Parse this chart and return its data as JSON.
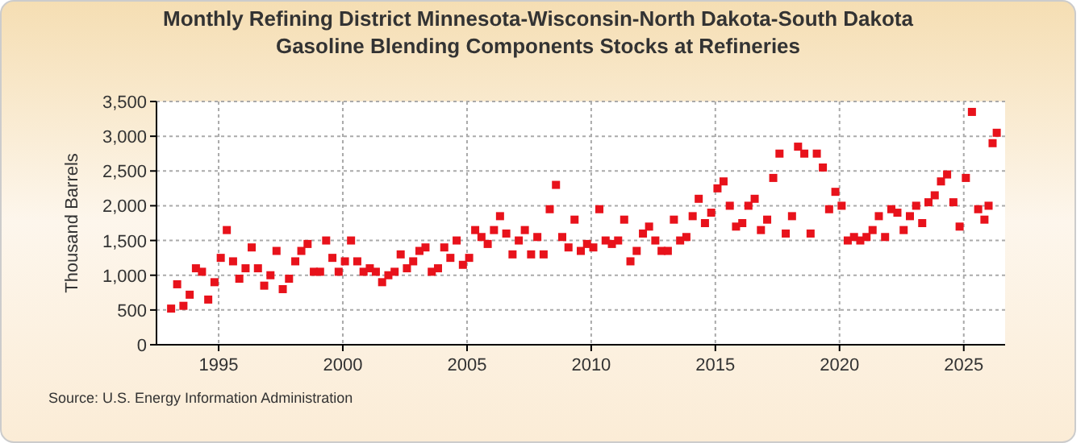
{
  "chart_data": {
    "type": "scatter",
    "title": "Monthly Refining District Minnesota-Wisconsin-North Dakota-South Dakota Gasoline Blending Components Stocks at Refineries",
    "ylabel": "Thousand Barrels",
    "annotations": [
      "Source: U.S. Energy Information Administration"
    ],
    "x": [
      "1993-02",
      "1993-05",
      "1993-08",
      "1993-11",
      "1994-02",
      "1994-05",
      "1994-08",
      "1994-11",
      "1995-02",
      "1995-05",
      "1995-08",
      "1995-11",
      "1996-02",
      "1996-05",
      "1996-08",
      "1996-11",
      "1997-02",
      "1997-05",
      "1997-08",
      "1997-11",
      "1998-02",
      "1998-05",
      "1998-08",
      "1998-11",
      "1999-02",
      "1999-05",
      "1999-08",
      "1999-11",
      "2000-02",
      "2000-05",
      "2000-08",
      "2000-11",
      "2001-02",
      "2001-05",
      "2001-08",
      "2001-11",
      "2002-02",
      "2002-05",
      "2002-08",
      "2002-11",
      "2003-02",
      "2003-05",
      "2003-08",
      "2003-11",
      "2004-02",
      "2004-05",
      "2004-08",
      "2004-11",
      "2005-02",
      "2005-05",
      "2005-08",
      "2005-11",
      "2006-02",
      "2006-05",
      "2006-08",
      "2006-11",
      "2007-02",
      "2007-05",
      "2007-08",
      "2007-11",
      "2008-02",
      "2008-05",
      "2008-08",
      "2008-11",
      "2009-02",
      "2009-05",
      "2009-08",
      "2009-11",
      "2010-02",
      "2010-05",
      "2010-08",
      "2010-11",
      "2011-02",
      "2011-05",
      "2011-08",
      "2011-11",
      "2012-02",
      "2012-05",
      "2012-08",
      "2012-11",
      "2013-02",
      "2013-05",
      "2013-08",
      "2013-11",
      "2014-02",
      "2014-05",
      "2014-08",
      "2014-11",
      "2015-02",
      "2015-05",
      "2015-08",
      "2015-11",
      "2016-02",
      "2016-05",
      "2016-08",
      "2016-11",
      "2017-02",
      "2017-05",
      "2017-08",
      "2017-11",
      "2018-02",
      "2018-05",
      "2018-08",
      "2018-11",
      "2019-02",
      "2019-05",
      "2019-08",
      "2019-11",
      "2020-02",
      "2020-05",
      "2020-08",
      "2020-11",
      "2021-02",
      "2021-05",
      "2021-08",
      "2021-11",
      "2022-02",
      "2022-05",
      "2022-08",
      "2022-11",
      "2023-02",
      "2023-05",
      "2023-08",
      "2023-11",
      "2024-02",
      "2024-05",
      "2024-08",
      "2024-11",
      "2025-02",
      "2025-05",
      "2025-08",
      "2025-11",
      "2026-01",
      "2026-03",
      "2026-05"
    ],
    "series": [
      {
        "color": "#e8121b",
        "values": [
          520,
          870,
          560,
          720,
          1100,
          1050,
          650,
          900,
          1250,
          1650,
          1200,
          950,
          1100,
          1400,
          1100,
          850,
          1000,
          1350,
          800,
          950,
          1200,
          1350,
          1450,
          1050,
          1050,
          1500,
          1250,
          1050,
          1200,
          1500,
          1200,
          1050,
          1100,
          1050,
          900,
          1000,
          1050,
          1300,
          1100,
          1200,
          1350,
          1400,
          1050,
          1100,
          1400,
          1250,
          1500,
          1150,
          1250,
          1650,
          1550,
          1450,
          1650,
          1850,
          1600,
          1300,
          1500,
          1650,
          1300,
          1550,
          1300,
          1950,
          2300,
          1550,
          1400,
          1800,
          1350,
          1450,
          1400,
          1950,
          1500,
          1450,
          1500,
          1800,
          1200,
          1350,
          1600,
          1700,
          1500,
          1350,
          1350,
          1800,
          1500,
          1550,
          1850,
          2100,
          1750,
          1900,
          2250,
          2350,
          2000,
          1700,
          1750,
          2000,
          2100,
          1650,
          1800,
          2400,
          2750,
          1600,
          1850,
          2850,
          2750,
          1600,
          2750,
          2550,
          1950,
          2200,
          2000,
          1500,
          1550,
          1500,
          1550,
          1650,
          1850,
          1550,
          1950,
          1900,
          1650,
          1850,
          2000,
          1750,
          2050,
          2150,
          2350,
          2450,
          2050,
          1700,
          2400,
          3350,
          1950,
          1800,
          2000,
          2900,
          3050
        ]
      }
    ],
    "xlim": [
      "1992-07",
      "2026-09"
    ],
    "xticks": [
      {
        "value": "1995",
        "label": "1995"
      },
      {
        "value": "2000",
        "label": "2000"
      },
      {
        "value": "2005",
        "label": "2005"
      },
      {
        "value": "2010",
        "label": "2010"
      },
      {
        "value": "2015",
        "label": "2015"
      },
      {
        "value": "2020",
        "label": "2020"
      },
      {
        "value": "2025",
        "label": "2025"
      }
    ],
    "ylim": [
      0,
      3500
    ],
    "yticks": [
      {
        "value": 0,
        "label": "0"
      },
      {
        "value": 500,
        "label": "500"
      },
      {
        "value": 1000,
        "label": "1,000"
      },
      {
        "value": 1500,
        "label": "1,500"
      },
      {
        "value": 2000,
        "label": "2,000"
      },
      {
        "value": 2500,
        "label": "2,500"
      },
      {
        "value": 3000,
        "label": "3,000"
      },
      {
        "value": 3500,
        "label": "3,500"
      }
    ],
    "grid": true,
    "marker": "square"
  }
}
